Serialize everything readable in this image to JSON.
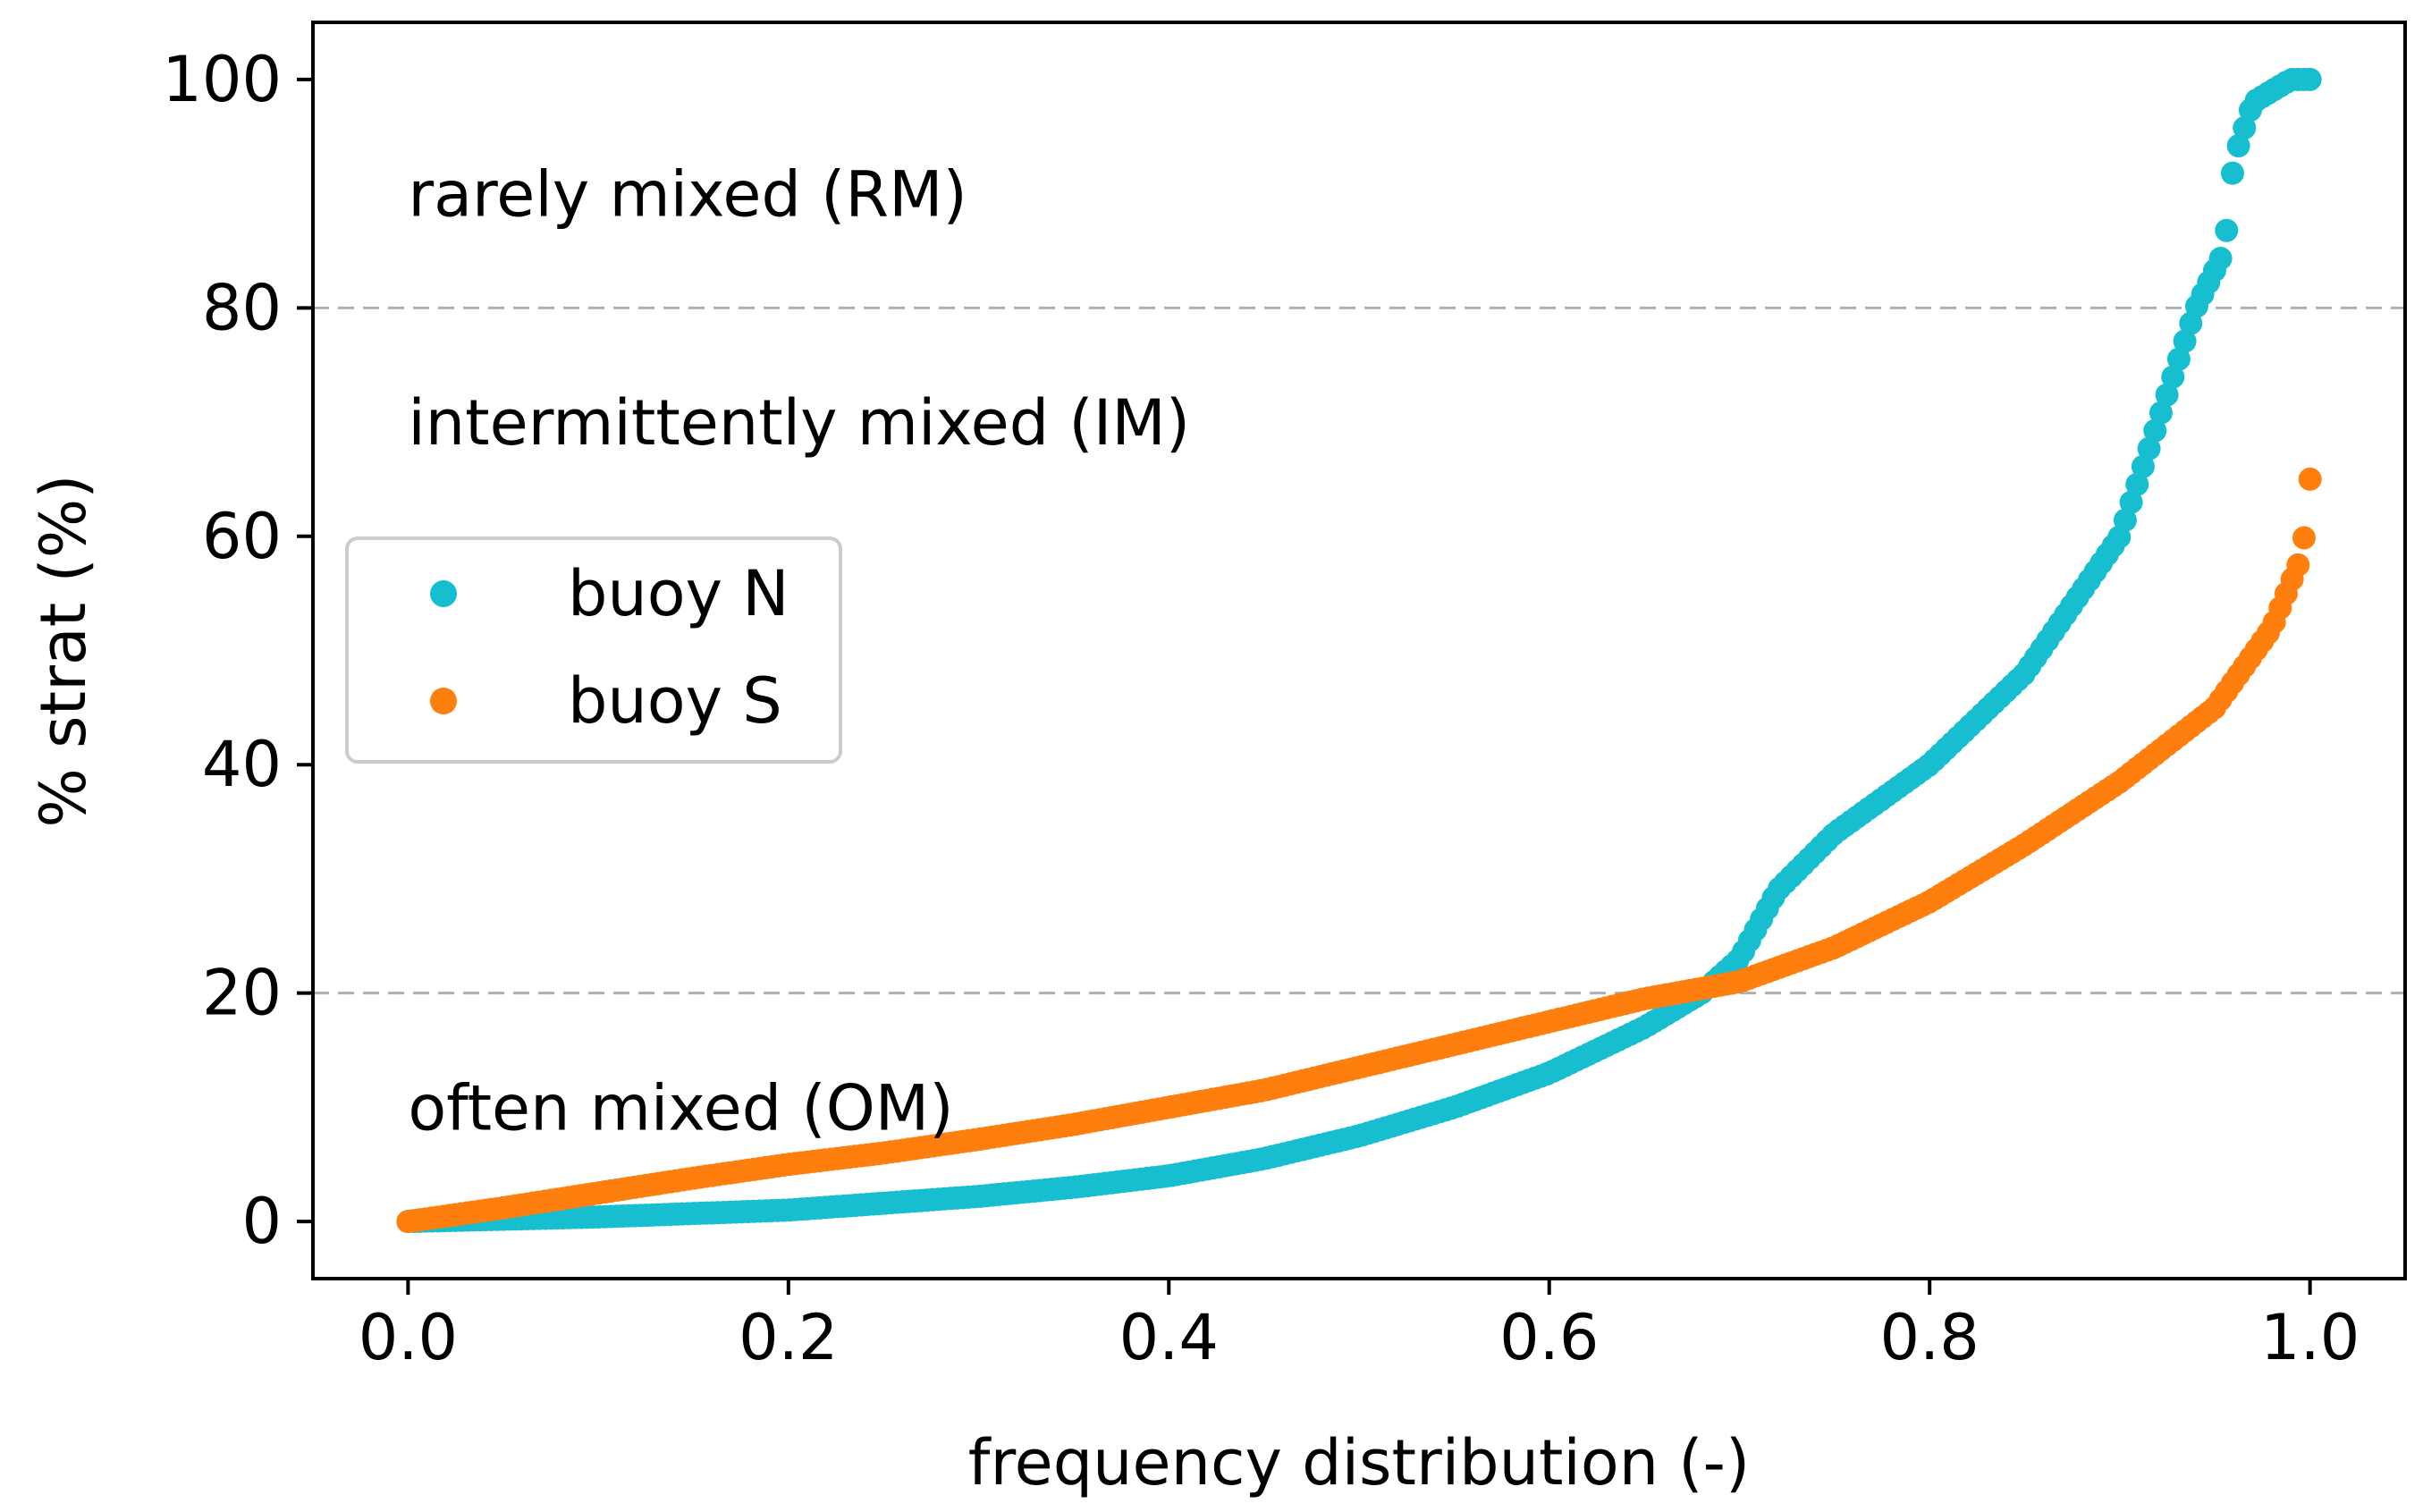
{
  "chart_data": {
    "type": "scatter",
    "title": "",
    "xlabel": "frequency distribution (-)",
    "ylabel": "% strat (%)",
    "xlim": [
      -0.05,
      1.05
    ],
    "ylim": [
      -5,
      105
    ],
    "xticks": [
      0.0,
      0.2,
      0.4,
      0.6,
      0.8,
      1.0
    ],
    "xtick_labels": [
      "0.0",
      "0.2",
      "0.4",
      "0.6",
      "0.8",
      "1.0"
    ],
    "yticks": [
      0,
      20,
      40,
      60,
      80,
      100
    ],
    "ytick_labels": [
      "0",
      "20",
      "40",
      "60",
      "80",
      "100"
    ],
    "grid": false,
    "legend_position": "center-left",
    "reference_lines": [
      {
        "y": 20,
        "style": "dashed",
        "color": "#b0b0b0"
      },
      {
        "y": 80,
        "style": "dashed",
        "color": "#b0b0b0"
      }
    ],
    "annotations": [
      {
        "text": "rarely mixed (RM)",
        "x": 0.0,
        "y": 90
      },
      {
        "text": "intermittently mixed (IM)",
        "x": 0.0,
        "y": 70
      },
      {
        "text": "often mixed (OM)",
        "x": 0.0,
        "y": 10
      }
    ],
    "series": [
      {
        "name": "buoy N",
        "color": "#17becf",
        "x": [
          0.0,
          0.05,
          0.1,
          0.15,
          0.2,
          0.25,
          0.3,
          0.35,
          0.4,
          0.45,
          0.5,
          0.55,
          0.6,
          0.65,
          0.68,
          0.7,
          0.72,
          0.75,
          0.8,
          0.85,
          0.9,
          0.92,
          0.94,
          0.955,
          0.96,
          0.97,
          0.99,
          1.0
        ],
        "y": [
          0,
          0.2,
          0.4,
          0.7,
          1.0,
          1.6,
          2.2,
          3.0,
          4.0,
          5.5,
          7.5,
          10,
          13,
          17,
          20,
          23,
          29,
          34,
          40,
          48,
          60,
          70,
          80,
          85,
          93,
          98,
          100,
          100
        ]
      },
      {
        "name": "buoy S",
        "color": "#ff7f0e",
        "x": [
          0.0,
          0.05,
          0.1,
          0.15,
          0.2,
          0.25,
          0.3,
          0.35,
          0.4,
          0.45,
          0.5,
          0.55,
          0.6,
          0.65,
          0.7,
          0.75,
          0.8,
          0.85,
          0.9,
          0.95,
          0.98,
          0.995,
          0.998,
          1.0
        ],
        "y": [
          0,
          1.2,
          2.5,
          3.8,
          5.0,
          6.0,
          7.2,
          8.5,
          10,
          11.5,
          13.5,
          15.5,
          17.5,
          19.5,
          21,
          24,
          28,
          33,
          38.5,
          45,
          52,
          58,
          61,
          65
        ]
      }
    ]
  }
}
